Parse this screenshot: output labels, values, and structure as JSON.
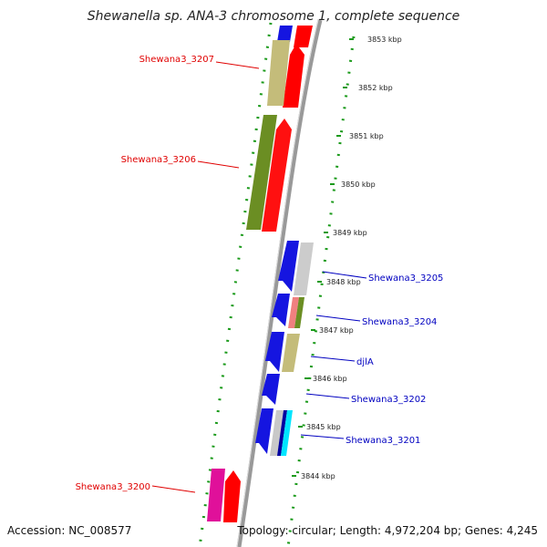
{
  "header": {
    "title": "Shewanella sp. ANA-3 chromosome 1, complete sequence"
  },
  "footer": {
    "accession": "Accession: NC_008577",
    "summary": "Topology: circular; Length: 4,972,204 bp; Genes: 4,245"
  },
  "colors": {
    "left_label": "#e00000",
    "right_label": "#0000c0",
    "backbone": "#888888",
    "dotted_guide": "#1a9a1a"
  },
  "ticks": [
    "3853 kbp",
    "3852 kbp",
    "3851 kbp",
    "3850 kbp",
    "3849 kbp",
    "3848 kbp",
    "3847 kbp",
    "3846 kbp",
    "3845 kbp",
    "3844 kbp"
  ],
  "gene_labels_left": [
    "Shewana3_3207",
    "Shewana3_3206",
    "Shewana3_3200"
  ],
  "gene_labels_right": [
    "Shewana3_3205",
    "Shewana3_3204",
    "djlA",
    "Shewana3_3202",
    "Shewana3_3201"
  ]
}
